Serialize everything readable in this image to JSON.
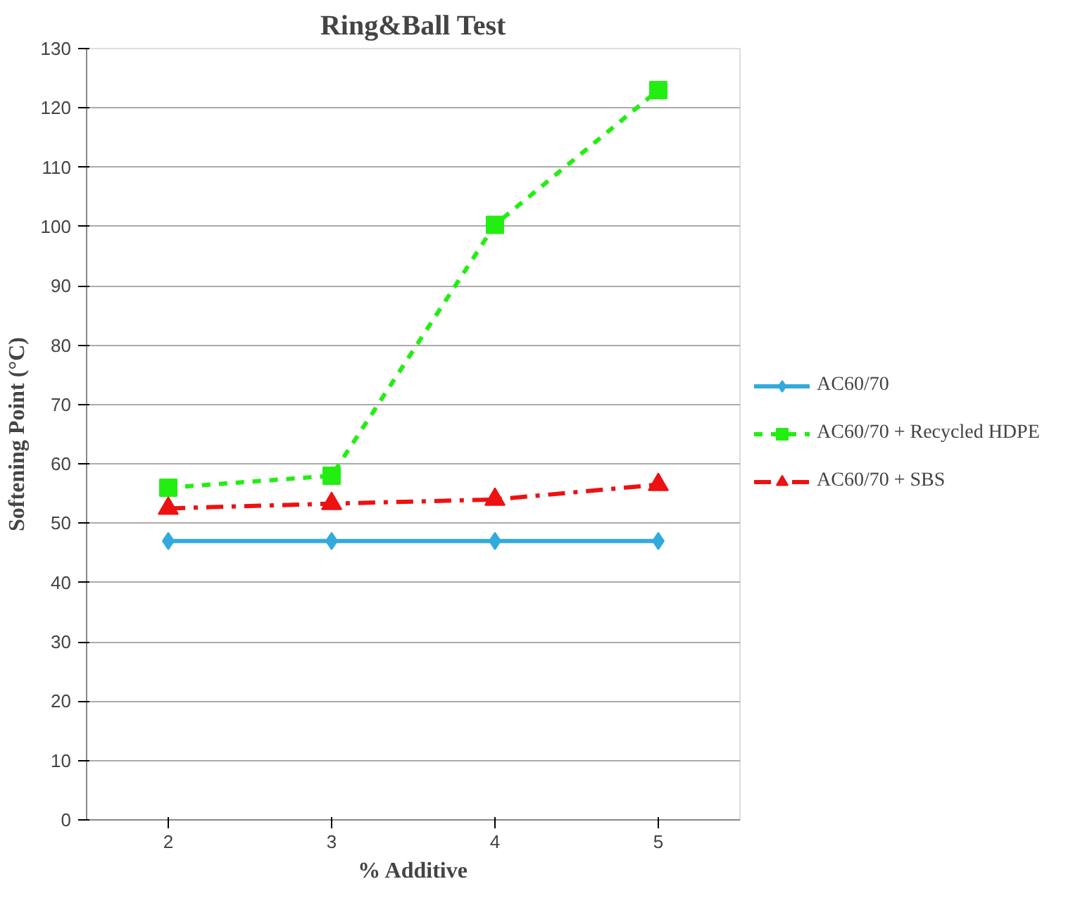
{
  "chart_data": {
    "type": "line",
    "title": "Ring&Ball Test",
    "xlabel": "% Additive",
    "ylabel": "Softening Point (°C)",
    "categories": [
      "2",
      "3",
      "4",
      "5"
    ],
    "series": [
      {
        "name": "AC60/70",
        "color": "#33aadd",
        "values": [
          47,
          47,
          47,
          47
        ],
        "marker": "diamond",
        "line_style": "solid"
      },
      {
        "name": "AC60/70 + Recycled HDPE",
        "color": "#22ee11",
        "values": [
          56,
          58,
          100.3,
          123
        ],
        "marker": "square",
        "line_style": "dashed"
      },
      {
        "name": "AC60/70 + SBS",
        "color": "#ee1111",
        "values": [
          52.5,
          53.3,
          54,
          56.5
        ],
        "marker": "triangle",
        "line_style": "dashdot"
      }
    ],
    "ylim": [
      0,
      130
    ],
    "yticks": [
      0,
      10,
      20,
      30,
      40,
      50,
      60,
      70,
      80,
      90,
      100,
      110,
      120,
      130
    ],
    "grid": "y",
    "legend": "right"
  }
}
